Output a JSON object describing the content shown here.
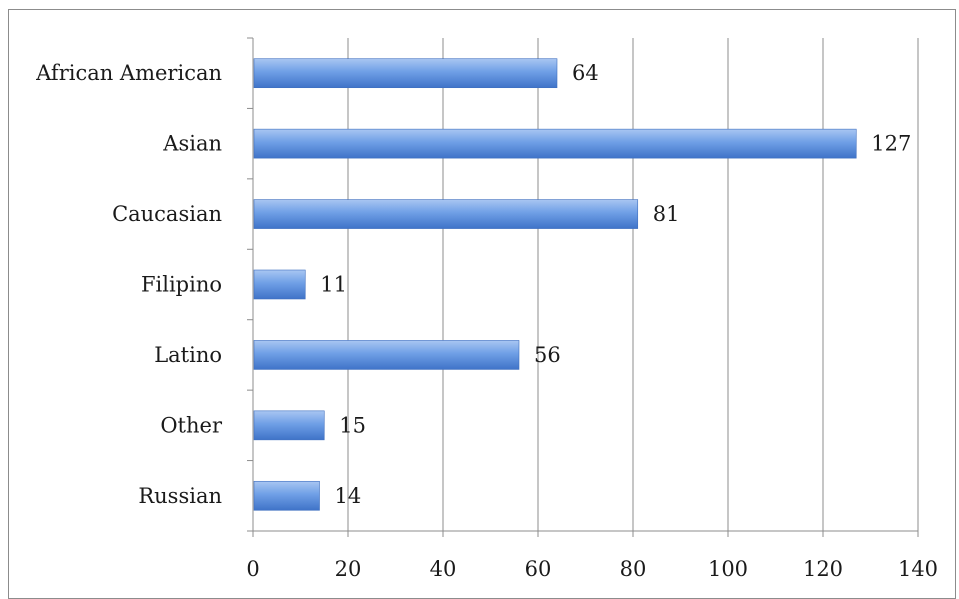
{
  "chart_data": {
    "type": "bar",
    "orientation": "horizontal",
    "categories": [
      "African American",
      "Asian",
      "Caucasian",
      "Filipino",
      "Latino",
      "Other",
      "Russian"
    ],
    "values": [
      64,
      127,
      81,
      11,
      56,
      15,
      14
    ],
    "data_labels": [
      "64",
      "127",
      "81",
      "11",
      "56",
      "15",
      "14"
    ],
    "xlim": [
      0,
      140
    ],
    "x_ticks": [
      0,
      20,
      40,
      60,
      80,
      100,
      120,
      140
    ],
    "x_tick_labels": [
      "0",
      "20",
      "40",
      "60",
      "80",
      "100",
      "120",
      "140"
    ],
    "grid": "vertical",
    "legend": "none",
    "bar_color": "#4f86d9",
    "bar_highlight": "#a9c6f2",
    "grid_color": "#8c8c8c"
  }
}
